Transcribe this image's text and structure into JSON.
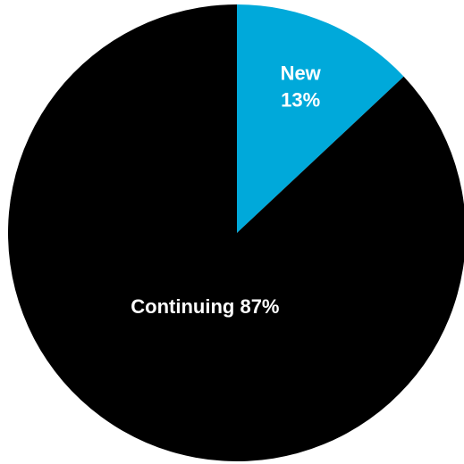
{
  "chart_data": {
    "type": "pie",
    "start_angle_deg": 0,
    "direction": "clockwise",
    "slices": [
      {
        "name": "New",
        "value": 13,
        "color": "#00A9DA",
        "label_lines": [
          "New",
          "13%"
        ]
      },
      {
        "name": "Continuing",
        "value": 87,
        "color": "#000000",
        "label_lines": [
          "Continuing 87%"
        ]
      }
    ]
  }
}
